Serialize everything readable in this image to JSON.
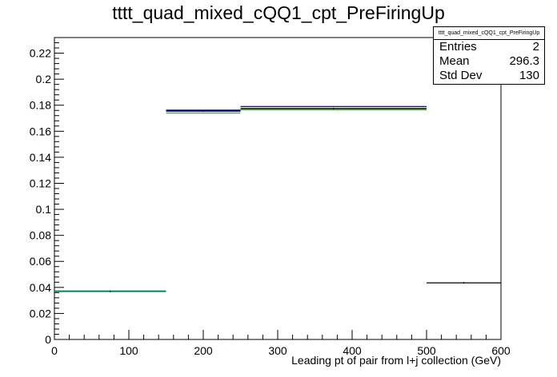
{
  "chart_data": {
    "type": "histogram",
    "title": "tttt_quad_mixed_cQQ1_cpt_PreFiringUp",
    "xlabel": "Leading pt of pair from l+j collection (GeV)",
    "ylabel": "",
    "xlim": [
      0,
      600
    ],
    "ylim": [
      0,
      0.232
    ],
    "x_ticks": [
      0,
      100,
      200,
      300,
      400,
      500,
      600
    ],
    "y_ticks": [
      0,
      0.02,
      0.04,
      0.06,
      0.08,
      0.1,
      0.12,
      0.14,
      0.16,
      0.18,
      0.2,
      0.22
    ],
    "y_tick_labels": [
      "0",
      "0.02",
      "0.04",
      "0.06",
      "0.08",
      "0.1",
      "0.12",
      "0.14",
      "0.16",
      "0.18",
      "0.2",
      "0.22"
    ],
    "bin_edges": [
      0,
      150,
      250,
      500,
      600
    ],
    "series": [
      {
        "color": "#000000",
        "values": [
          0.037,
          0.1755,
          0.1775,
          0.0435
        ]
      },
      {
        "color": "#0000cc",
        "values": [
          0.0372,
          0.1762,
          0.179,
          null
        ]
      },
      {
        "color": "#00cc00",
        "values": [
          0.0368,
          0.174,
          0.1765,
          null
        ]
      }
    ]
  },
  "stats": {
    "title": "tttt_quad_mixed_cQQ1_cpt_PreFiringUp",
    "entries_label": "Entries",
    "entries_value": "2",
    "mean_label": "Mean",
    "mean_value": "296.3",
    "stddev_label": "Std Dev",
    "stddev_value": "130"
  }
}
